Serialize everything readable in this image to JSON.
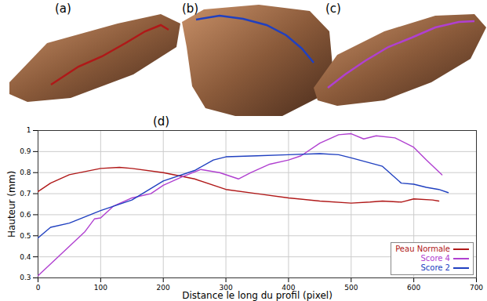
{
  "panels": {
    "labels": [
      "(a)",
      "(b)",
      "(c)"
    ]
  },
  "chart_data": {
    "type": "line",
    "annotations": [
      "(d)"
    ],
    "x_label": "Distance le long du profil (pixel)",
    "y_label": "Hauteur (mm)",
    "xlim": [
      0,
      700
    ],
    "xticks": [
      0,
      100,
      200,
      300,
      400,
      500,
      600,
      700
    ],
    "ylim": [
      0.3,
      1
    ],
    "yticks": [
      0.3,
      0.4,
      0.5,
      0.6,
      0.7,
      0.8,
      0.9,
      1
    ],
    "grid": true,
    "legend": "lower right",
    "series": [
      {
        "name": "Peau Normale",
        "color": "#b01818",
        "x": [
          0,
          20,
          50,
          100,
          130,
          150,
          200,
          250,
          300,
          350,
          400,
          450,
          500,
          530,
          550,
          580,
          600,
          630,
          640
        ],
        "values": [
          0.71,
          0.75,
          0.79,
          0.82,
          0.825,
          0.82,
          0.8,
          0.77,
          0.72,
          0.7,
          0.68,
          0.665,
          0.655,
          0.66,
          0.665,
          0.66,
          0.675,
          0.67,
          0.665
        ]
      },
      {
        "name": "Score 4",
        "color": "#b040d0",
        "x": [
          0,
          25,
          50,
          75,
          90,
          100,
          120,
          150,
          180,
          200,
          230,
          260,
          290,
          320,
          340,
          370,
          400,
          420,
          450,
          480,
          500,
          520,
          540,
          570,
          600,
          620,
          645
        ],
        "values": [
          0.31,
          0.38,
          0.45,
          0.52,
          0.58,
          0.585,
          0.64,
          0.68,
          0.7,
          0.74,
          0.78,
          0.815,
          0.8,
          0.77,
          0.8,
          0.84,
          0.86,
          0.88,
          0.94,
          0.98,
          0.985,
          0.96,
          0.975,
          0.965,
          0.92,
          0.86,
          0.79
        ]
      },
      {
        "name": "Score 2",
        "color": "#2040c0",
        "x": [
          0,
          20,
          50,
          100,
          150,
          200,
          250,
          280,
          300,
          350,
          400,
          450,
          480,
          500,
          550,
          580,
          600,
          620,
          640,
          655
        ],
        "values": [
          0.49,
          0.54,
          0.56,
          0.62,
          0.67,
          0.76,
          0.81,
          0.86,
          0.875,
          0.88,
          0.885,
          0.89,
          0.885,
          0.87,
          0.83,
          0.75,
          0.745,
          0.73,
          0.72,
          0.705
        ]
      }
    ]
  }
}
